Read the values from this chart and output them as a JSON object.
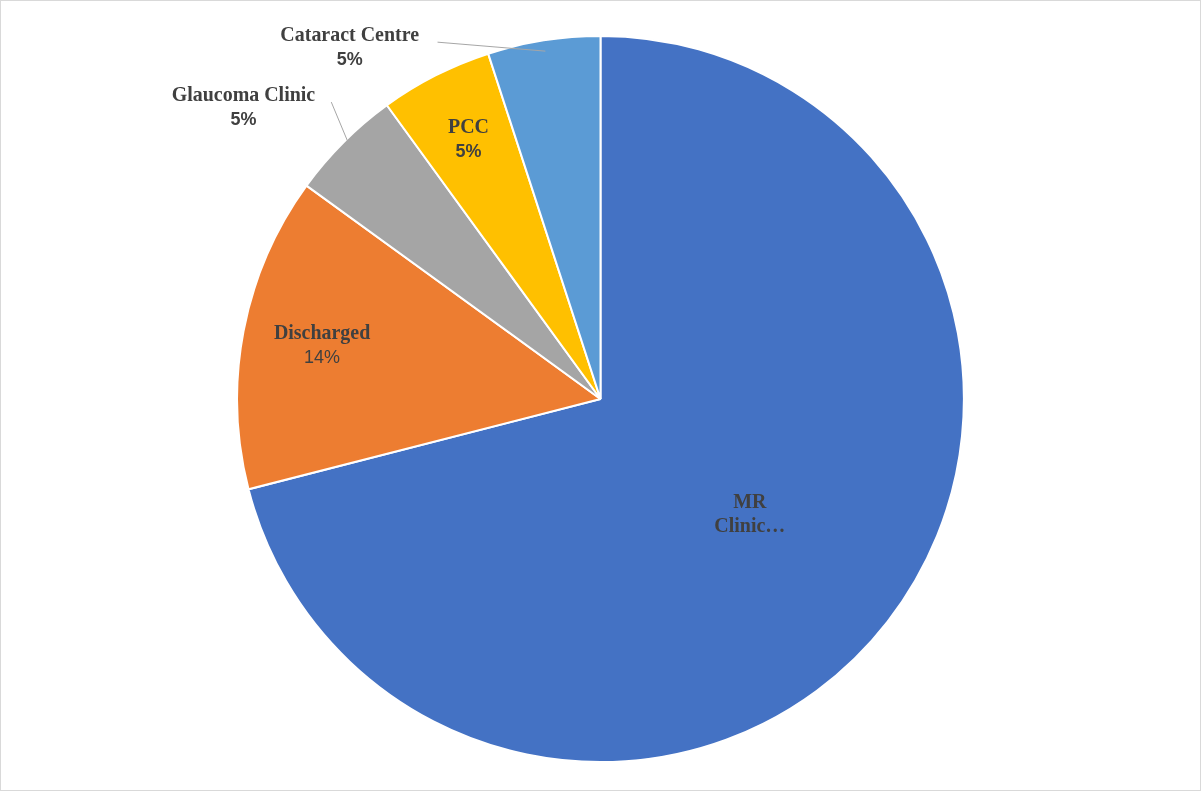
{
  "chart_data": {
    "type": "pie",
    "categories": [
      "MR Clinic…",
      "Discharged",
      "Glaucoma Clinic",
      "PCC",
      "Cataract Centre"
    ],
    "values": [
      71,
      14,
      5,
      5,
      5
    ],
    "colors": [
      "#4472c4",
      "#ed7d31",
      "#a5a5a5",
      "#ffc000",
      "#5b9bd5"
    ],
    "value_labels": [
      null,
      "14%",
      "5%",
      "5%",
      "5%"
    ],
    "legend": false
  }
}
